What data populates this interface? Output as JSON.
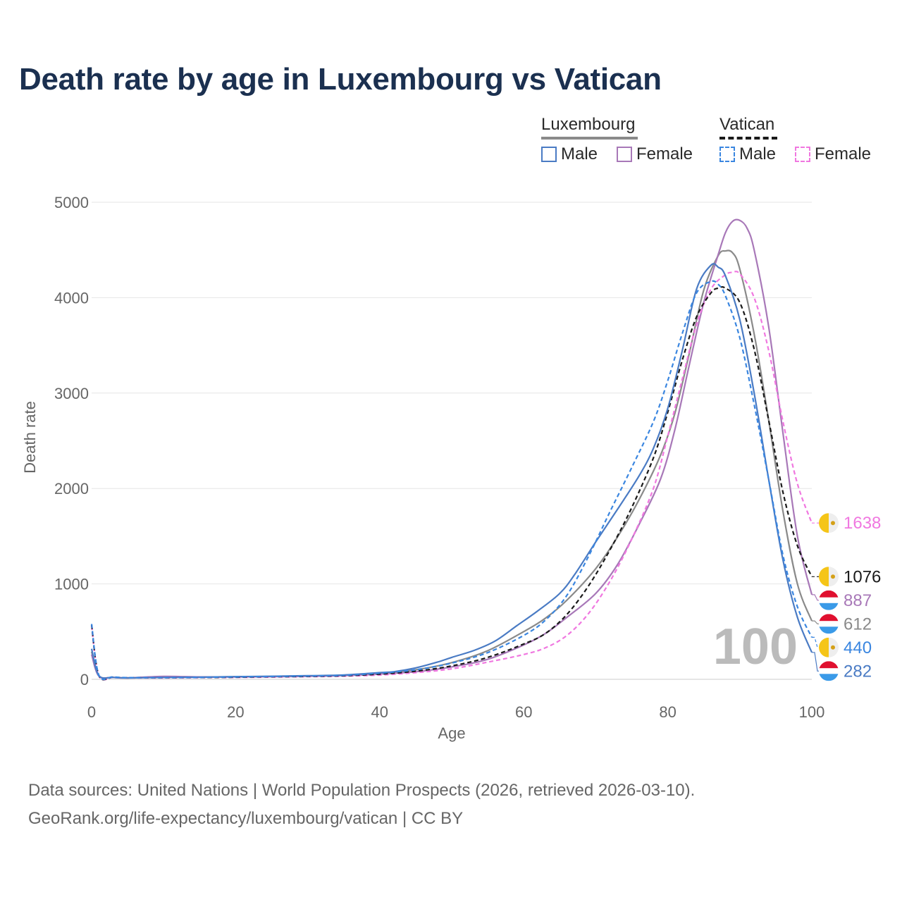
{
  "title": "Death rate by age in Luxembourg vs Vatican",
  "legend": {
    "groups": [
      {
        "name": "Luxembourg",
        "items": [
          {
            "label": "Male",
            "color": "#4a7bc4",
            "style": "solid"
          },
          {
            "label": "Female",
            "color": "#a878b8",
            "style": "solid"
          }
        ]
      },
      {
        "name": "Vatican",
        "items": [
          {
            "label": "Male",
            "color": "#3a86e0",
            "style": "dashed"
          },
          {
            "label": "Female",
            "color": "#f078e0",
            "style": "dashed"
          }
        ]
      }
    ]
  },
  "watermark": "100",
  "footer": {
    "line1": "Data sources: United Nations | World Population Prospects (2026, retrieved 2026-03-10).",
    "line2": "GeoRank.org/life-expectancy/luxembourg/vatican | CC BY"
  },
  "chart_data": {
    "type": "line",
    "title": "Death rate by age in Luxembourg vs Vatican",
    "xlabel": "Age",
    "ylabel": "Death rate",
    "xlim": [
      0,
      100
    ],
    "ylim": [
      0,
      5000
    ],
    "xticks": [
      "0",
      "20",
      "40",
      "60",
      "80",
      "100"
    ],
    "yticks": [
      "0",
      "1000",
      "2000",
      "3000",
      "4000",
      "5000"
    ],
    "grid": true,
    "series": [
      {
        "name": "Luxembourg Male",
        "key": "lux-male",
        "color": "#4a7bc4",
        "dashed": false,
        "end_value": "282",
        "flag": "luxembourg",
        "points": [
          [
            0,
            320
          ],
          [
            1,
            40
          ],
          [
            3,
            20
          ],
          [
            5,
            15
          ],
          [
            10,
            20
          ],
          [
            15,
            22
          ],
          [
            20,
            28
          ],
          [
            25,
            32
          ],
          [
            30,
            38
          ],
          [
            35,
            45
          ],
          [
            40,
            70
          ],
          [
            42,
            80
          ],
          [
            45,
            120
          ],
          [
            48,
            180
          ],
          [
            50,
            230
          ],
          [
            53,
            300
          ],
          [
            56,
            400
          ],
          [
            59,
            560
          ],
          [
            62,
            720
          ],
          [
            65,
            900
          ],
          [
            67,
            1090
          ],
          [
            70,
            1440
          ],
          [
            73,
            1780
          ],
          [
            76,
            2130
          ],
          [
            78,
            2420
          ],
          [
            80,
            2840
          ],
          [
            82,
            3440
          ],
          [
            84,
            4090
          ],
          [
            86,
            4340
          ],
          [
            87,
            4320
          ],
          [
            88,
            4230
          ],
          [
            90,
            3770
          ],
          [
            92,
            3000
          ],
          [
            94,
            2100
          ],
          [
            96,
            1250
          ],
          [
            98,
            650
          ],
          [
            100,
            282
          ]
        ]
      },
      {
        "name": "Luxembourg Female",
        "key": "lux-female",
        "color": "#a878b8",
        "dashed": false,
        "end_value": "887",
        "flag": "luxembourg",
        "points": [
          [
            0,
            260
          ],
          [
            1,
            35
          ],
          [
            3,
            20
          ],
          [
            5,
            15
          ],
          [
            10,
            30
          ],
          [
            15,
            25
          ],
          [
            20,
            25
          ],
          [
            25,
            28
          ],
          [
            30,
            32
          ],
          [
            35,
            40
          ],
          [
            40,
            55
          ],
          [
            45,
            80
          ],
          [
            50,
            130
          ],
          [
            55,
            210
          ],
          [
            60,
            360
          ],
          [
            63,
            480
          ],
          [
            66,
            650
          ],
          [
            70,
            900
          ],
          [
            73,
            1200
          ],
          [
            76,
            1620
          ],
          [
            79,
            2100
          ],
          [
            81,
            2620
          ],
          [
            83,
            3300
          ],
          [
            85,
            3950
          ],
          [
            87,
            4450
          ],
          [
            88,
            4680
          ],
          [
            89,
            4800
          ],
          [
            90,
            4810
          ],
          [
            91,
            4730
          ],
          [
            92,
            4500
          ],
          [
            94,
            3700
          ],
          [
            96,
            2580
          ],
          [
            98,
            1500
          ],
          [
            100,
            887
          ]
        ]
      },
      {
        "name": "Luxembourg Total",
        "key": "lux-total",
        "color": "#8a8a8a",
        "dashed": false,
        "end_value": "612",
        "flag": "luxembourg",
        "points": [
          [
            0,
            290
          ],
          [
            1,
            38
          ],
          [
            3,
            20
          ],
          [
            5,
            15
          ],
          [
            10,
            25
          ],
          [
            15,
            24
          ],
          [
            20,
            27
          ],
          [
            25,
            30
          ],
          [
            30,
            35
          ],
          [
            35,
            43
          ],
          [
            40,
            62
          ],
          [
            45,
            100
          ],
          [
            50,
            175
          ],
          [
            55,
            300
          ],
          [
            60,
            500
          ],
          [
            63,
            640
          ],
          [
            66,
            830
          ],
          [
            70,
            1160
          ],
          [
            73,
            1490
          ],
          [
            76,
            1880
          ],
          [
            79,
            2350
          ],
          [
            81,
            2790
          ],
          [
            83,
            3420
          ],
          [
            85,
            4080
          ],
          [
            87,
            4440
          ],
          [
            88,
            4490
          ],
          [
            89,
            4470
          ],
          [
            90,
            4300
          ],
          [
            92,
            3620
          ],
          [
            94,
            2720
          ],
          [
            96,
            1760
          ],
          [
            98,
            1000
          ],
          [
            100,
            612
          ]
        ]
      },
      {
        "name": "Vatican Male",
        "key": "vat-male",
        "color": "#3a86e0",
        "dashed": true,
        "end_value": "440",
        "flag": "vatican",
        "points": [
          [
            0,
            580
          ],
          [
            1,
            45
          ],
          [
            3,
            25
          ],
          [
            5,
            18
          ],
          [
            10,
            18
          ],
          [
            15,
            20
          ],
          [
            20,
            25
          ],
          [
            25,
            30
          ],
          [
            30,
            35
          ],
          [
            35,
            42
          ],
          [
            40,
            65
          ],
          [
            45,
            100
          ],
          [
            50,
            170
          ],
          [
            55,
            280
          ],
          [
            60,
            460
          ],
          [
            63,
            620
          ],
          [
            66,
            880
          ],
          [
            69,
            1290
          ],
          [
            72,
            1760
          ],
          [
            75,
            2220
          ],
          [
            78,
            2700
          ],
          [
            80,
            3130
          ],
          [
            82,
            3620
          ],
          [
            84,
            4050
          ],
          [
            86,
            4170
          ],
          [
            87,
            4140
          ],
          [
            88,
            4020
          ],
          [
            90,
            3580
          ],
          [
            92,
            2880
          ],
          [
            94,
            2100
          ],
          [
            96,
            1300
          ],
          [
            98,
            760
          ],
          [
            100,
            440
          ]
        ]
      },
      {
        "name": "Vatican Female",
        "key": "vat-female",
        "color": "#f078e0",
        "dashed": true,
        "end_value": "1638",
        "flag": "vatican",
        "points": [
          [
            0,
            560
          ],
          [
            1,
            40
          ],
          [
            3,
            20
          ],
          [
            5,
            15
          ],
          [
            10,
            15
          ],
          [
            15,
            18
          ],
          [
            20,
            20
          ],
          [
            25,
            24
          ],
          [
            30,
            28
          ],
          [
            35,
            33
          ],
          [
            40,
            45
          ],
          [
            45,
            70
          ],
          [
            50,
            110
          ],
          [
            55,
            180
          ],
          [
            60,
            260
          ],
          [
            63,
            330
          ],
          [
            66,
            460
          ],
          [
            69,
            690
          ],
          [
            72,
            1030
          ],
          [
            75,
            1470
          ],
          [
            78,
            2000
          ],
          [
            80,
            2550
          ],
          [
            82,
            3140
          ],
          [
            84,
            3720
          ],
          [
            86,
            4090
          ],
          [
            88,
            4240
          ],
          [
            89,
            4265
          ],
          [
            90,
            4250
          ],
          [
            92,
            4000
          ],
          [
            94,
            3450
          ],
          [
            96,
            2700
          ],
          [
            98,
            2050
          ],
          [
            100,
            1638
          ]
        ]
      },
      {
        "name": "Vatican Total",
        "key": "vat-total",
        "color": "#1a1a1a",
        "dashed": true,
        "end_value": "1076",
        "flag": "vatican",
        "points": [
          [
            0,
            570
          ],
          [
            1,
            42
          ],
          [
            3,
            22
          ],
          [
            5,
            16
          ],
          [
            10,
            17
          ],
          [
            15,
            19
          ],
          [
            20,
            22
          ],
          [
            25,
            27
          ],
          [
            30,
            31
          ],
          [
            35,
            38
          ],
          [
            40,
            55
          ],
          [
            45,
            85
          ],
          [
            50,
            140
          ],
          [
            55,
            230
          ],
          [
            60,
            370
          ],
          [
            63,
            480
          ],
          [
            66,
            680
          ],
          [
            69,
            980
          ],
          [
            72,
            1360
          ],
          [
            75,
            1800
          ],
          [
            78,
            2320
          ],
          [
            80,
            2800
          ],
          [
            82,
            3340
          ],
          [
            84,
            3800
          ],
          [
            86,
            4050
          ],
          [
            87,
            4100
          ],
          [
            88,
            4100
          ],
          [
            90,
            3950
          ],
          [
            92,
            3460
          ],
          [
            94,
            2720
          ],
          [
            96,
            1960
          ],
          [
            98,
            1400
          ],
          [
            100,
            1076
          ]
        ]
      }
    ]
  }
}
